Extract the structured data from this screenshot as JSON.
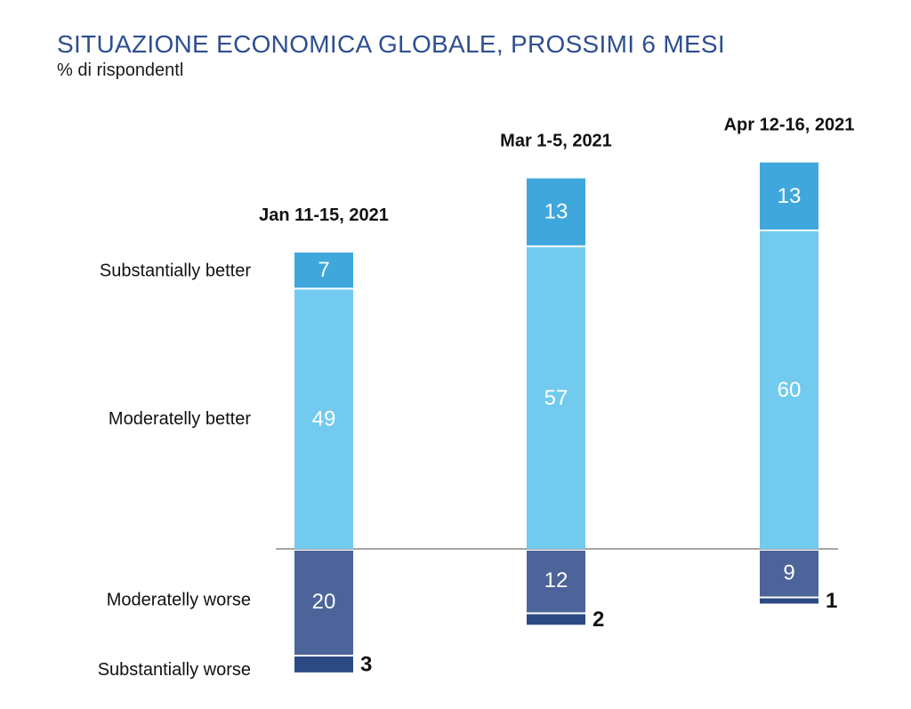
{
  "title": "SITUAZIONE ECONOMICA GLOBALE, PROSSIMI 6 MESI",
  "subtitle": "% di rispondentl",
  "colors": {
    "substantially_better": "#3FA7DC",
    "moderately_better": "#72CBEE",
    "moderately_worse": "#4C6499",
    "substantially_worse": "#2B4A84",
    "baseline": "#A6A6A6"
  },
  "chart_data": {
    "type": "bar",
    "stacked": true,
    "diverging": true,
    "categories": [
      "Jan 11-15, 2021",
      "Mar 1-5, 2021",
      "Apr 12-16, 2021"
    ],
    "series": [
      {
        "name": "Substantially better",
        "values": [
          7,
          13,
          13
        ]
      },
      {
        "name": "Moderatelly better",
        "values": [
          49,
          57,
          60
        ]
      },
      {
        "name": "Moderatelly worse",
        "values": [
          20,
          12,
          9
        ]
      },
      {
        "name": "Substantially worse",
        "values": [
          3,
          2,
          1
        ]
      }
    ],
    "title": "SITUAZIONE ECONOMICA GLOBALE, PROSSIMI 6 MESI",
    "subtitle": "% di rispondentl",
    "legend": "left"
  }
}
